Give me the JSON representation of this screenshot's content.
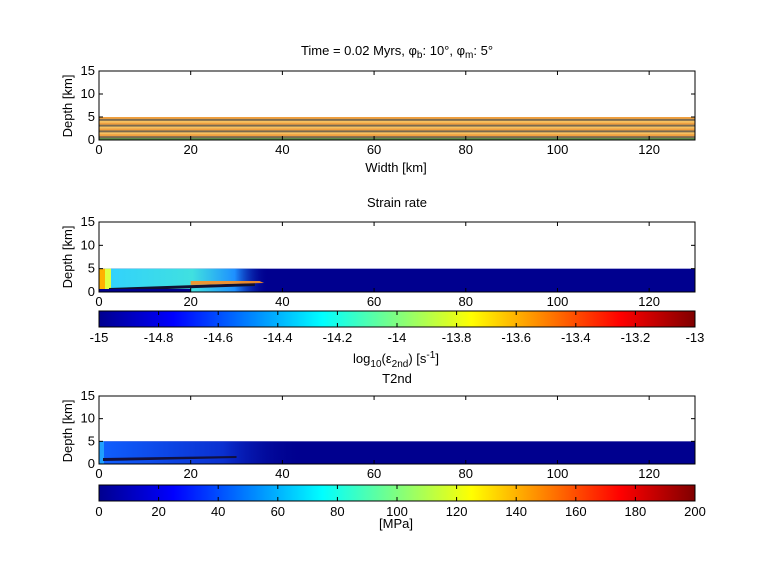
{
  "chart_data": [
    {
      "type": "heatmap",
      "title_prefix": "Time = 0.02 Myrs, ",
      "title_sym_b": "φ",
      "title_sub_b": "b",
      "title_val_b": ": 10°, ",
      "title_sym_m": "φ",
      "title_sub_m": "m",
      "title_val_m": ": 5°",
      "xlabel": "Width [km]",
      "ylabel": "Depth [km]",
      "xlim": [
        0,
        130
      ],
      "ylim": [
        0,
        15
      ],
      "xticks": [
        0,
        20,
        40,
        60,
        80,
        100,
        120
      ],
      "yticks": [
        0,
        5,
        10,
        15
      ],
      "layer_top_depth": 5,
      "layer_colors": [
        "#f0a040",
        "#7a6a50",
        "#f5c060",
        "#5a8a4a"
      ]
    },
    {
      "type": "heatmap",
      "title": "Strain rate",
      "xlabel": "",
      "ylabel": "Depth [km]",
      "xlim": [
        0,
        130
      ],
      "ylim": [
        0,
        15
      ],
      "xticks": [
        0,
        20,
        40,
        60,
        80,
        100,
        120
      ],
      "yticks": [
        0,
        5,
        10,
        15
      ],
      "layer_top_depth": 5,
      "background_value": -15,
      "colorbar": {
        "range": [
          -15,
          -13
        ],
        "ticks": [
          -15,
          -14.8,
          -14.6,
          -14.4,
          -14.2,
          -14,
          -13.8,
          -13.6,
          -13.4,
          -13.2,
          -13
        ],
        "label_pre": "log",
        "label_sub1": "10",
        "label_mid": "(ε",
        "label_sub2": "2nd",
        "label_post": ") [s",
        "label_sup": "-1",
        "label_end": "]"
      }
    },
    {
      "type": "heatmap",
      "title": "T2nd",
      "xlabel": "",
      "ylabel": "Depth [km]",
      "xlim": [
        0,
        130
      ],
      "ylim": [
        0,
        15
      ],
      "xticks": [
        0,
        20,
        40,
        60,
        80,
        100,
        120
      ],
      "yticks": [
        0,
        5,
        10,
        15
      ],
      "layer_top_depth": 5,
      "background_value": 0,
      "colorbar": {
        "range": [
          0,
          200
        ],
        "ticks": [
          0,
          20,
          40,
          60,
          80,
          100,
          120,
          140,
          160,
          180,
          200
        ],
        "label": "[MPa]"
      }
    }
  ],
  "colormap": "jet"
}
